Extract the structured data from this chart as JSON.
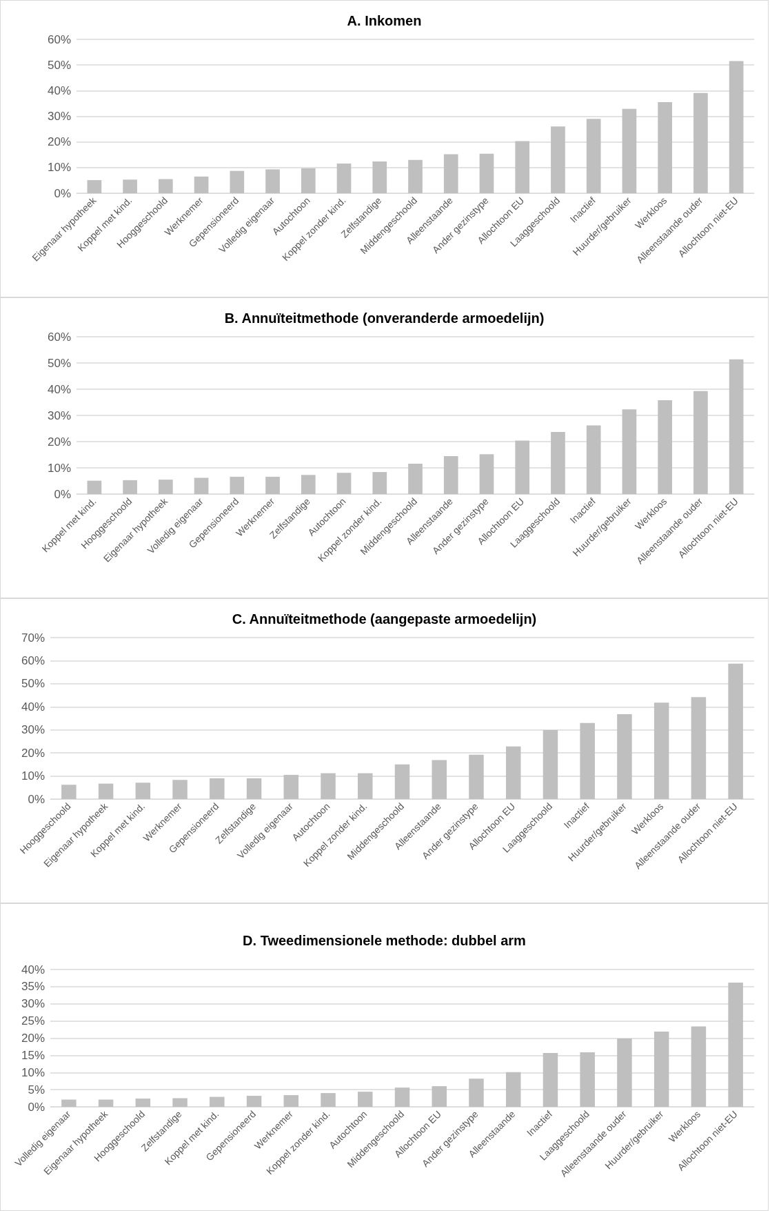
{
  "chart_data": [
    {
      "type": "bar",
      "title": "A. Inkomen",
      "categories": [
        "Eigenaar hypotheek",
        "Koppel met kind.",
        "Hooggeschoold",
        "Werknemer",
        "Gepensioneerd",
        "Volledig eigenaar",
        "Autochtoon",
        "Koppel zonder kind.",
        "Zelfstandige",
        "Middengeschoold",
        "Alleenstaande",
        "Ander gezinstype",
        "Allochtoon EU",
        "Laaggeschoold",
        "Inactief",
        "Huurder/gebruiker",
        "Werkloos",
        "Alleenstaande ouder",
        "Allochtoon niet-EU"
      ],
      "values": [
        5.1,
        5.3,
        5.5,
        6.5,
        8.7,
        9.3,
        9.7,
        11.6,
        12.4,
        13.0,
        15.2,
        15.4,
        20.3,
        26.0,
        29.0,
        32.9,
        35.5,
        39.1,
        51.5
      ],
      "color": "#bfbfbf",
      "ylim": [
        0,
        60
      ],
      "yticks": [
        {
          "value": 0,
          "label": "0%"
        },
        {
          "value": 10,
          "label": "10%"
        },
        {
          "value": 20,
          "label": "20%"
        },
        {
          "value": 30,
          "label": "30%"
        },
        {
          "value": 40,
          "label": "40%"
        },
        {
          "value": 50,
          "label": "50%"
        },
        {
          "value": 60,
          "label": "60%"
        }
      ],
      "grid": "y"
    },
    {
      "type": "bar",
      "title": "B. Annuïteitmethode (onveranderde armoedelijn)",
      "categories": [
        "Koppel met kind.",
        "Hooggeschoold",
        "Eigenaar hypotheek",
        "Volledig eigenaar",
        "Gepensioneerd",
        "Werknemer",
        "Zelfstandige",
        "Autochtoon",
        "Koppel zonder kind.",
        "Middengeschoold",
        "Alleenstaande",
        "Ander gezinstype",
        "Allochtoon EU",
        "Laaggeschoold",
        "Inactief",
        "Huurder/gebruiker",
        "Werkloos",
        "Alleenstaande ouder",
        "Allochtoon niet-EU"
      ],
      "values": [
        5.1,
        5.3,
        5.5,
        6.2,
        6.6,
        6.6,
        7.3,
        8.1,
        8.4,
        11.6,
        14.5,
        15.2,
        20.4,
        23.7,
        26.2,
        32.3,
        35.8,
        39.3,
        51.4
      ],
      "color": "#bfbfbf",
      "ylim": [
        0,
        60
      ],
      "yticks": [
        {
          "value": 0,
          "label": "0%"
        },
        {
          "value": 10,
          "label": "10%"
        },
        {
          "value": 20,
          "label": "20%"
        },
        {
          "value": 30,
          "label": "30%"
        },
        {
          "value": 40,
          "label": "40%"
        },
        {
          "value": 50,
          "label": "50%"
        },
        {
          "value": 60,
          "label": "60%"
        }
      ],
      "grid": "y"
    },
    {
      "type": "bar",
      "title": "C. Annuïteitmethode (aangepaste armoedelijn)",
      "categories": [
        "Hooggeschoold",
        "Eigenaar hypotheek",
        "Koppel met kind.",
        "Werknemer",
        "Gepensioneerd",
        "Zelfstandige",
        "Volledig eigenaar",
        "Autochtoon",
        "Koppel zonder kind.",
        "Middengeschoold",
        "Alleenstaande",
        "Ander gezinstype",
        "Allochtoon EU",
        "Laaggeschoold",
        "Inactief",
        "Huurder/gebruiker",
        "Werkloos",
        "Alleenstaande ouder",
        "Allochtoon niet-EU"
      ],
      "values": [
        6.2,
        6.7,
        7.1,
        8.3,
        9.0,
        9.0,
        10.5,
        11.2,
        11.2,
        15.0,
        16.9,
        19.2,
        22.8,
        29.9,
        33.0,
        36.8,
        41.8,
        44.2,
        58.7
      ],
      "color": "#bfbfbf",
      "ylim": [
        0,
        70
      ],
      "yticks": [
        {
          "value": 0,
          "label": "0%"
        },
        {
          "value": 10,
          "label": "10%"
        },
        {
          "value": 20,
          "label": "20%"
        },
        {
          "value": 30,
          "label": "30%"
        },
        {
          "value": 40,
          "label": "40%"
        },
        {
          "value": 50,
          "label": "50%"
        },
        {
          "value": 60,
          "label": "60%"
        },
        {
          "value": 70,
          "label": "70%"
        }
      ],
      "grid": "y"
    },
    {
      "type": "bar",
      "title": "D. Tweedimensionele methode: dubbel arm",
      "categories": [
        "Volledig eigenaar",
        "Eigenaar hypotheek",
        "Hooggeschoold",
        "Zelfstandige",
        "Koppel met kind.",
        "Gepensioneerd",
        "Werknemer",
        "Koppel zonder kind.",
        "Autochtoon",
        "Middengeschoold",
        "Allochtoon EU",
        "Ander gezinstype",
        "Alleenstaande",
        "Inactief",
        "Laaggeschoold",
        "Alleenstaande ouder",
        "Huurder/gebruiker",
        "Werkloos",
        "Allochtoon niet-EU"
      ],
      "values": [
        2.1,
        2.1,
        2.4,
        2.5,
        2.9,
        3.2,
        3.4,
        4.0,
        4.4,
        5.6,
        6.0,
        8.2,
        10.1,
        15.7,
        15.9,
        19.9,
        21.9,
        23.4,
        36.2
      ],
      "color": "#bfbfbf",
      "ylim": [
        0,
        40
      ],
      "yticks": [
        {
          "value": 0,
          "label": "0%"
        },
        {
          "value": 5,
          "label": "5%"
        },
        {
          "value": 10,
          "label": "10%"
        },
        {
          "value": 15,
          "label": "15%"
        },
        {
          "value": 20,
          "label": "20%"
        },
        {
          "value": 25,
          "label": "25%"
        },
        {
          "value": 30,
          "label": "30%"
        },
        {
          "value": 35,
          "label": "35%"
        },
        {
          "value": 40,
          "label": "40%"
        }
      ],
      "grid": "y"
    }
  ]
}
